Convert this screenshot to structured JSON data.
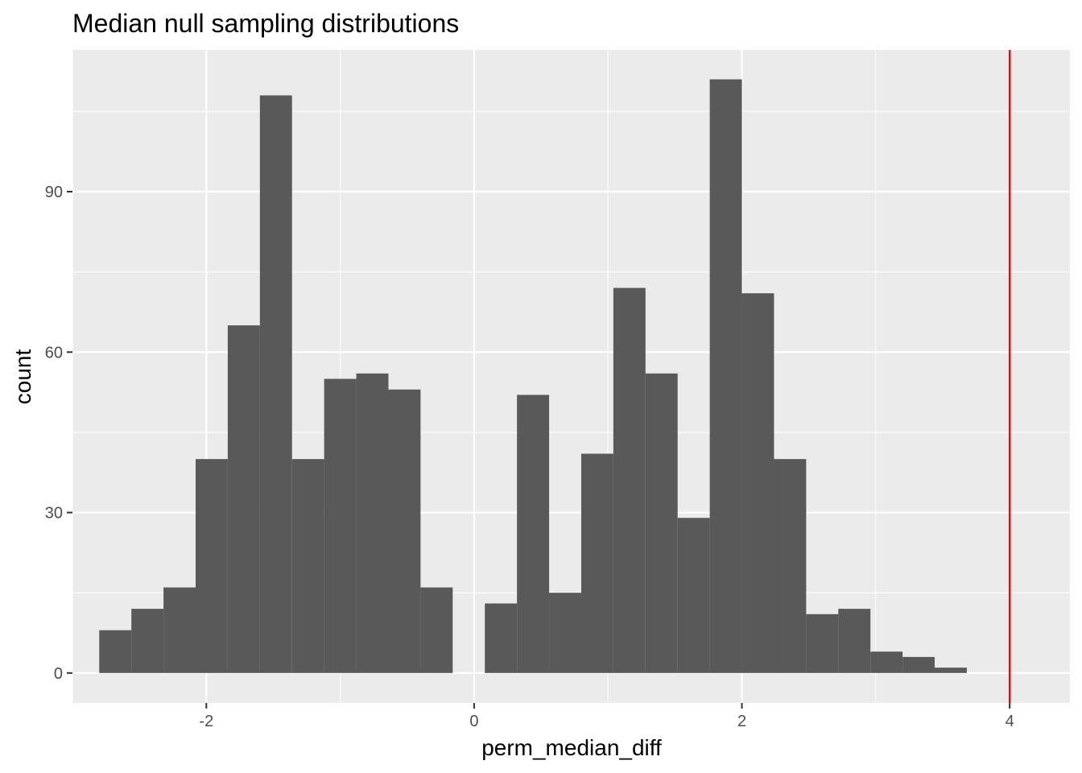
{
  "chart_data": {
    "type": "bar",
    "subtype": "histogram",
    "title": "Median null sampling distributions",
    "xlabel": "perm_median_diff",
    "ylabel": "count",
    "xlim": [
      -3.0,
      4.45
    ],
    "ylim": [
      -5.6,
      116.5
    ],
    "x_ticks": [
      {
        "value": -2,
        "label": "-2"
      },
      {
        "value": 0,
        "label": "0"
      },
      {
        "value": 2,
        "label": "2"
      },
      {
        "value": 4,
        "label": "4"
      }
    ],
    "y_ticks": [
      {
        "value": 0,
        "label": "0"
      },
      {
        "value": 30,
        "label": "30"
      },
      {
        "value": 60,
        "label": "60"
      },
      {
        "value": 90,
        "label": "90"
      }
    ],
    "x_minor": [
      -3,
      -1,
      1,
      3
    ],
    "y_minor": [
      15,
      45,
      75,
      105
    ],
    "grid": true,
    "bins": [
      {
        "xmin": -2.8,
        "xmax": -2.56,
        "count": 8
      },
      {
        "xmin": -2.56,
        "xmax": -2.32,
        "count": 12
      },
      {
        "xmin": -2.32,
        "xmax": -2.08,
        "count": 16
      },
      {
        "xmin": -2.08,
        "xmax": -1.84,
        "count": 40
      },
      {
        "xmin": -1.84,
        "xmax": -1.6,
        "count": 65
      },
      {
        "xmin": -1.6,
        "xmax": -1.36,
        "count": 108
      },
      {
        "xmin": -1.36,
        "xmax": -1.12,
        "count": 40
      },
      {
        "xmin": -1.12,
        "xmax": -0.88,
        "count": 55
      },
      {
        "xmin": -0.88,
        "xmax": -0.64,
        "count": 56
      },
      {
        "xmin": -0.64,
        "xmax": -0.4,
        "count": 53
      },
      {
        "xmin": -0.4,
        "xmax": -0.16,
        "count": 16
      },
      {
        "xmin": -0.16,
        "xmax": 0.08,
        "count": 0
      },
      {
        "xmin": 0.08,
        "xmax": 0.32,
        "count": 13
      },
      {
        "xmin": 0.32,
        "xmax": 0.56,
        "count": 52
      },
      {
        "xmin": 0.56,
        "xmax": 0.8,
        "count": 15
      },
      {
        "xmin": 0.8,
        "xmax": 1.04,
        "count": 41
      },
      {
        "xmin": 1.04,
        "xmax": 1.28,
        "count": 72
      },
      {
        "xmin": 1.28,
        "xmax": 1.52,
        "count": 56
      },
      {
        "xmin": 1.52,
        "xmax": 1.76,
        "count": 29
      },
      {
        "xmin": 1.76,
        "xmax": 2.0,
        "count": 111
      },
      {
        "xmin": 2.0,
        "xmax": 2.24,
        "count": 71
      },
      {
        "xmin": 2.24,
        "xmax": 2.48,
        "count": 40
      },
      {
        "xmin": 2.48,
        "xmax": 2.72,
        "count": 11
      },
      {
        "xmin": 2.72,
        "xmax": 2.96,
        "count": 12
      },
      {
        "xmin": 2.96,
        "xmax": 3.2,
        "count": 4
      },
      {
        "xmin": 3.2,
        "xmax": 3.44,
        "count": 3
      },
      {
        "xmin": 3.44,
        "xmax": 3.68,
        "count": 1
      }
    ],
    "reference_line": {
      "x": 4.0,
      "color": "#ff0000"
    },
    "colors": {
      "bar": "#595959",
      "panel": "#ebebeb",
      "grid": "#ffffff",
      "axis_text": "#4d4d4d",
      "tick": "#333333"
    }
  }
}
